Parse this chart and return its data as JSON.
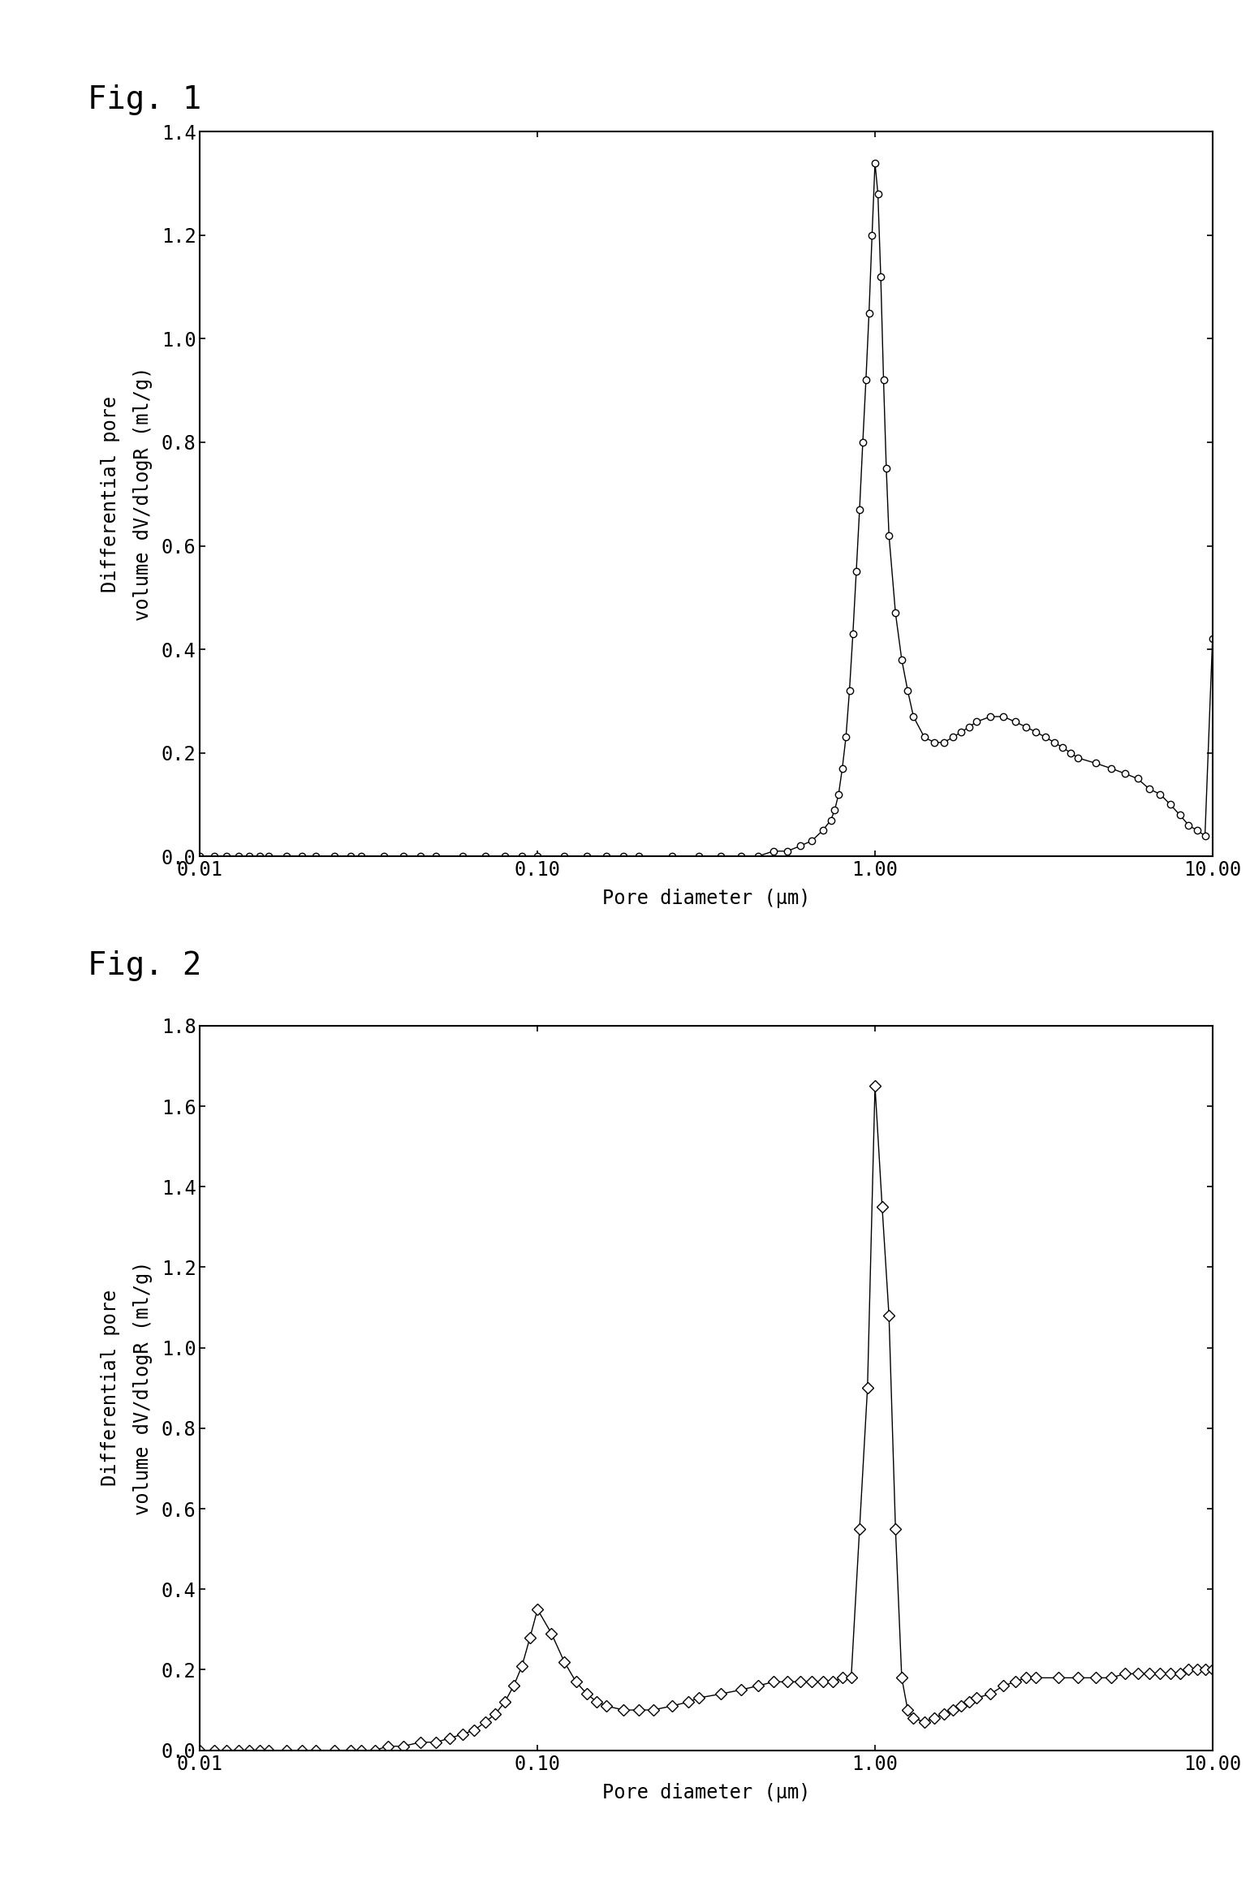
{
  "fig1_title": "Fig. 1",
  "fig2_title": "Fig. 2",
  "ylabel": "Differential pore\nvolume dV/dlogR (ml/g)",
  "xlabel": "Pore diameter (μm)",
  "fig1_ylim": [
    0.0,
    1.4
  ],
  "fig2_ylim": [
    0.0,
    1.8
  ],
  "xlim_log": [
    0.01,
    10.0
  ],
  "fig1_yticks": [
    0.0,
    0.2,
    0.4,
    0.6,
    0.8,
    1.0,
    1.2,
    1.4
  ],
  "fig2_yticks": [
    0.0,
    0.2,
    0.4,
    0.6,
    0.8,
    1.0,
    1.2,
    1.4,
    1.6,
    1.8
  ],
  "xtick_labels": [
    "0.01",
    "0.10",
    "1.00",
    "10.00"
  ],
  "background_color": "#ffffff",
  "line_color": "#000000",
  "marker_color": "#ffffff",
  "marker_edge_color": "#000000",
  "fig1_x": [
    0.01,
    0.011,
    0.012,
    0.013,
    0.014,
    0.015,
    0.016,
    0.018,
    0.02,
    0.022,
    0.025,
    0.028,
    0.03,
    0.035,
    0.04,
    0.045,
    0.05,
    0.06,
    0.07,
    0.08,
    0.09,
    0.1,
    0.12,
    0.14,
    0.16,
    0.18,
    0.2,
    0.25,
    0.3,
    0.35,
    0.4,
    0.45,
    0.5,
    0.55,
    0.6,
    0.65,
    0.7,
    0.74,
    0.76,
    0.78,
    0.8,
    0.82,
    0.84,
    0.86,
    0.88,
    0.9,
    0.92,
    0.94,
    0.96,
    0.98,
    1.0,
    1.02,
    1.04,
    1.06,
    1.08,
    1.1,
    1.15,
    1.2,
    1.25,
    1.3,
    1.4,
    1.5,
    1.6,
    1.7,
    1.8,
    1.9,
    2.0,
    2.2,
    2.4,
    2.6,
    2.8,
    3.0,
    3.2,
    3.4,
    3.6,
    3.8,
    4.0,
    4.5,
    5.0,
    5.5,
    6.0,
    6.5,
    7.0,
    7.5,
    8.0,
    8.5,
    9.0,
    9.5,
    10.0
  ],
  "fig1_y": [
    0.0,
    0.0,
    0.0,
    0.0,
    0.0,
    0.0,
    0.0,
    0.0,
    0.0,
    0.0,
    0.0,
    0.0,
    0.0,
    0.0,
    0.0,
    0.0,
    0.0,
    0.0,
    0.0,
    0.0,
    0.0,
    0.0,
    0.0,
    0.0,
    0.0,
    0.0,
    0.0,
    0.0,
    0.0,
    0.0,
    0.0,
    0.0,
    0.01,
    0.01,
    0.02,
    0.03,
    0.05,
    0.07,
    0.09,
    0.12,
    0.17,
    0.23,
    0.32,
    0.43,
    0.55,
    0.67,
    0.8,
    0.92,
    1.05,
    1.2,
    1.34,
    1.28,
    1.12,
    0.92,
    0.75,
    0.62,
    0.47,
    0.38,
    0.32,
    0.27,
    0.23,
    0.22,
    0.22,
    0.23,
    0.24,
    0.25,
    0.26,
    0.27,
    0.27,
    0.26,
    0.25,
    0.24,
    0.23,
    0.22,
    0.21,
    0.2,
    0.19,
    0.18,
    0.17,
    0.16,
    0.15,
    0.13,
    0.12,
    0.1,
    0.08,
    0.06,
    0.05,
    0.04,
    0.42
  ],
  "fig2_x": [
    0.01,
    0.011,
    0.012,
    0.013,
    0.014,
    0.015,
    0.016,
    0.018,
    0.02,
    0.022,
    0.025,
    0.028,
    0.03,
    0.033,
    0.036,
    0.04,
    0.045,
    0.05,
    0.055,
    0.06,
    0.065,
    0.07,
    0.075,
    0.08,
    0.085,
    0.09,
    0.095,
    0.1,
    0.11,
    0.12,
    0.13,
    0.14,
    0.15,
    0.16,
    0.18,
    0.2,
    0.22,
    0.25,
    0.28,
    0.3,
    0.35,
    0.4,
    0.45,
    0.5,
    0.55,
    0.6,
    0.65,
    0.7,
    0.75,
    0.8,
    0.85,
    0.9,
    0.95,
    1.0,
    1.05,
    1.1,
    1.15,
    1.2,
    1.25,
    1.3,
    1.4,
    1.5,
    1.6,
    1.7,
    1.8,
    1.9,
    2.0,
    2.2,
    2.4,
    2.6,
    2.8,
    3.0,
    3.5,
    4.0,
    4.5,
    5.0,
    5.5,
    6.0,
    6.5,
    7.0,
    7.5,
    8.0,
    8.5,
    9.0,
    9.5,
    10.0
  ],
  "fig2_y": [
    0.0,
    0.0,
    0.0,
    0.0,
    0.0,
    0.0,
    0.0,
    0.0,
    0.0,
    0.0,
    0.0,
    0.0,
    0.0,
    0.0,
    0.01,
    0.01,
    0.02,
    0.02,
    0.03,
    0.04,
    0.05,
    0.07,
    0.09,
    0.12,
    0.16,
    0.21,
    0.28,
    0.35,
    0.29,
    0.22,
    0.17,
    0.14,
    0.12,
    0.11,
    0.1,
    0.1,
    0.1,
    0.11,
    0.12,
    0.13,
    0.14,
    0.15,
    0.16,
    0.17,
    0.17,
    0.17,
    0.17,
    0.17,
    0.17,
    0.18,
    0.18,
    0.55,
    0.9,
    1.65,
    1.35,
    1.08,
    0.55,
    0.18,
    0.1,
    0.08,
    0.07,
    0.08,
    0.09,
    0.1,
    0.11,
    0.12,
    0.13,
    0.14,
    0.16,
    0.17,
    0.18,
    0.18,
    0.18,
    0.18,
    0.18,
    0.18,
    0.19,
    0.19,
    0.19,
    0.19,
    0.19,
    0.19,
    0.2,
    0.2,
    0.2,
    0.2
  ]
}
